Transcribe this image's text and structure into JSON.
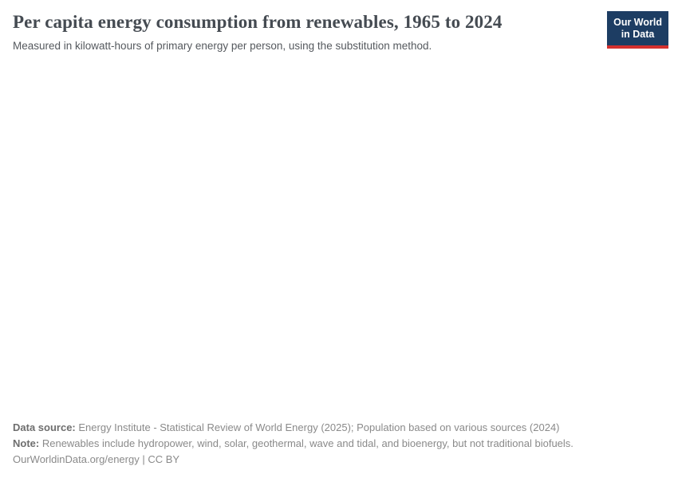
{
  "header": {
    "title": "Per capita energy consumption from renewables, 1965 to 2024",
    "subtitle": "Measured in kilowatt-hours of primary energy per person, using the substitution method.",
    "logo": {
      "line1": "Our World",
      "line2": "in Data",
      "background_color": "#1d3d63",
      "accent_color": "#d4302e",
      "text_color": "#ffffff"
    }
  },
  "chart_data": {
    "type": "line",
    "title": "Per capita energy consumption from renewables, 1965 to 2024",
    "subtitle": "Measured in kilowatt-hours of primary energy per person, using the substitution method.",
    "x_range": [
      1965,
      2024
    ],
    "series": [],
    "layout": {
      "plot_area_rendered": false,
      "note": "The chart body is blank in the screenshot (not yet loaded); only the header and footer text are visible."
    }
  },
  "footer": {
    "data_source": {
      "label": "Data source:",
      "text": "Energy Institute - Statistical Review of World Energy (2025); Population based on various sources (2024)"
    },
    "note": {
      "label": "Note:",
      "text": "Renewables include hydropower, wind, solar, geothermal, wave and tidal, and bioenergy, but not traditional biofuels."
    },
    "link": "OurWorldinData.org/energy",
    "separator": "|",
    "license": "CC BY"
  }
}
